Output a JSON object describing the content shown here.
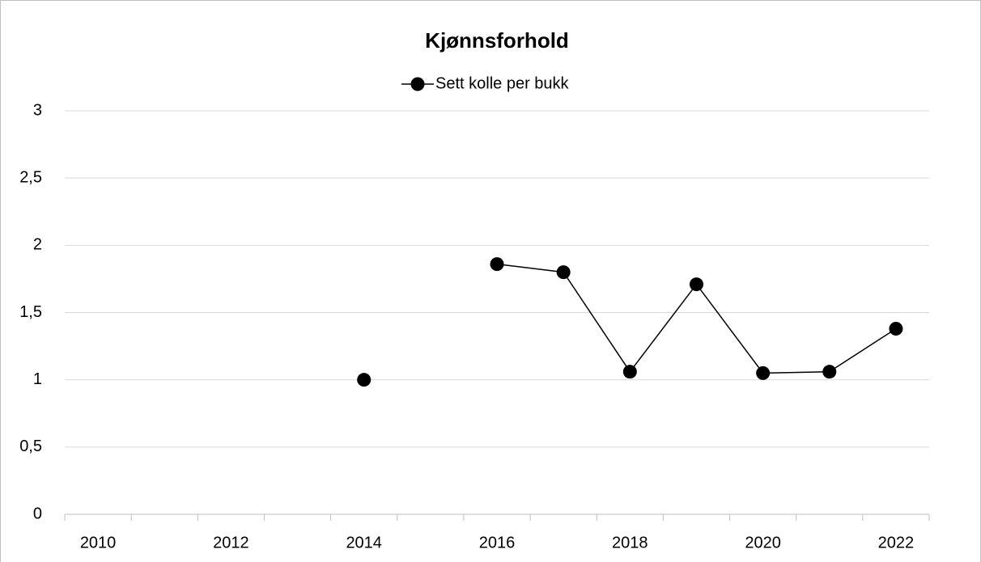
{
  "chart_data": {
    "type": "line",
    "title": "Kjønnsforhold",
    "categories": [
      "2010",
      null,
      "2012",
      null,
      "2014",
      null,
      "2016",
      null,
      "2018",
      null,
      "2020",
      null,
      "2022"
    ],
    "series": [
      {
        "name": "Sett kolle per bukk",
        "color": "#000000",
        "values": [
          null,
          null,
          null,
          null,
          1.0,
          null,
          1.86,
          1.8,
          1.06,
          1.71,
          1.05,
          1.06,
          1.38
        ]
      }
    ],
    "ylim": [
      0,
      3
    ],
    "yticks": [
      0,
      {
        "value": 0.5,
        "label": "0,5"
      },
      1,
      {
        "value": 1.5,
        "label": "1,5"
      },
      2,
      {
        "value": 2.5,
        "label": "2,5"
      },
      3
    ],
    "grid": true,
    "legend": "top"
  }
}
